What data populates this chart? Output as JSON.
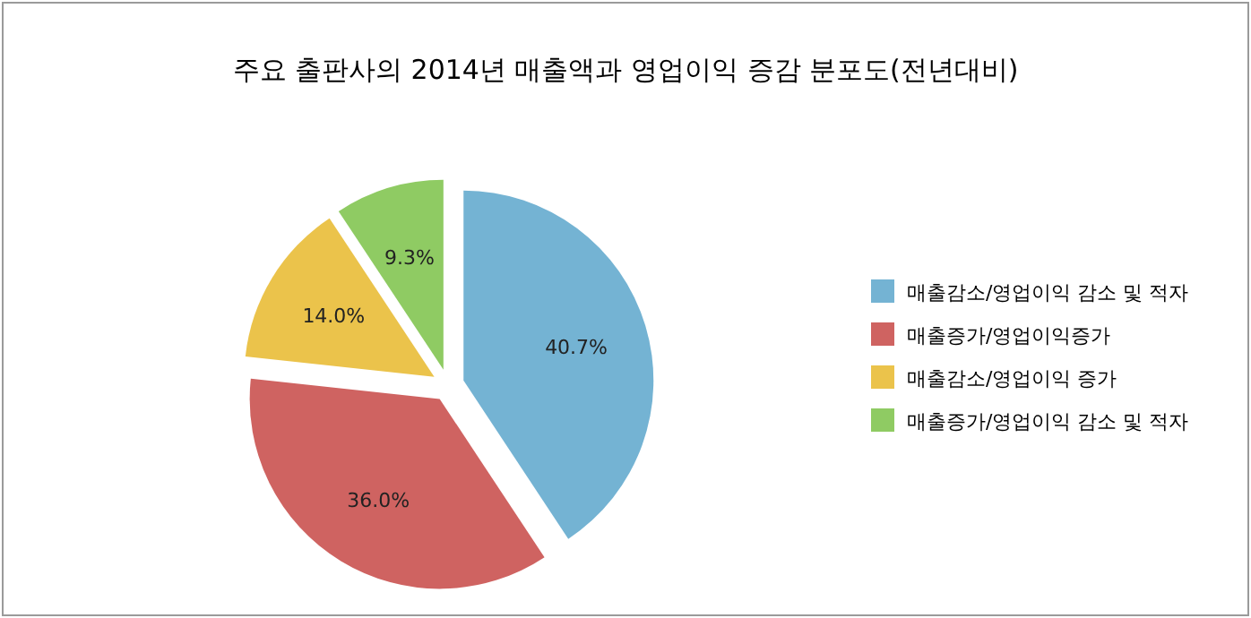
{
  "chart_data": {
    "type": "pie",
    "title": "주요 출판사의 2014년 매출액과 영업이익 증감 분포도(전년대비)",
    "categories": [
      "매출감소/영업이익 감소 및 적자",
      "매출증가/영업이익증가",
      "매출감소/영업이익 증가",
      "매출증가/영업이익 감소 및 적자"
    ],
    "values": [
      40.7,
      36.0,
      14.0,
      9.3
    ],
    "value_labels": [
      "40.7%",
      "36.0%",
      "14.0%",
      "9.3%"
    ],
    "colors": [
      "#74b3d3",
      "#cf6361",
      "#ebc34b",
      "#8fcb63"
    ],
    "legend": "right"
  }
}
